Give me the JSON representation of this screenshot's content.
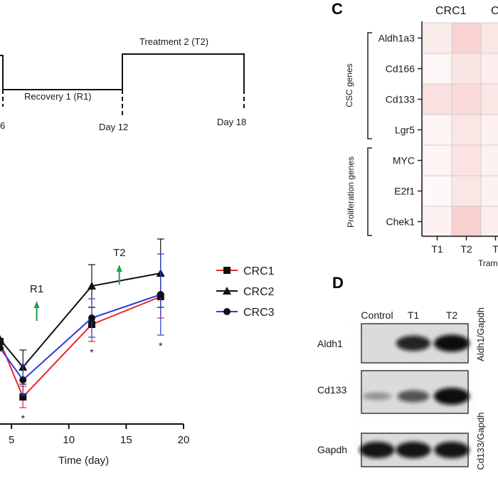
{
  "schematic": {
    "treatment2_label": "Treatment  2 (T2)",
    "recovery1_label": "Recovery  1 (R1)",
    "day6_partial": "6",
    "day12_label": "Day 12",
    "day18_label": "Day 18"
  },
  "panelC": {
    "letter": "C",
    "column_header": "CRC1",
    "column_header_partial": "C",
    "group_csc": "CSC genes",
    "group_prolif": "Proliferation genes",
    "rows": [
      "Aldh1a3",
      "Cd166",
      "Cd133",
      "Lgr5",
      "MYC",
      "E2f1",
      "Chek1"
    ],
    "cols": [
      "T1",
      "T2",
      "T"
    ],
    "xlabel_partial": "Trametin",
    "heat_colors": [
      [
        "#fbecec",
        "#f9d2d2",
        "#fbe6e6"
      ],
      [
        "#fdf6f6",
        "#fae4e4",
        "#fceeee"
      ],
      [
        "#fae0e0",
        "#fad9d9",
        "#fbe6e6"
      ],
      [
        "#fdf4f4",
        "#fbe6e6",
        "#fdf1f1"
      ],
      [
        "#fdf4f4",
        "#fbe3e3",
        "#fdf1f1"
      ],
      [
        "#fef8f8",
        "#fbe6e6",
        "#fdf1f1"
      ],
      [
        "#fdf1f1",
        "#f9d0d0",
        "#fceeee"
      ]
    ]
  },
  "panelD": {
    "letter": "D",
    "lanes": [
      "Control",
      "T1",
      "T2"
    ],
    "blots": [
      "Aldh1",
      "Cd133",
      "Gapdh"
    ],
    "side_labels": [
      "Aldh1/Gapdh",
      "Cd133/Gapdh"
    ],
    "band_intensity": [
      [
        0.0,
        0.85,
        1.0
      ],
      [
        0.15,
        0.55,
        1.0
      ],
      [
        0.95,
        0.95,
        0.95
      ]
    ]
  },
  "chart_data": {
    "type": "line",
    "xlabel": "Time (day)",
    "xlim": [
      4,
      20
    ],
    "ylim": [
      0,
      1
    ],
    "xticks": [
      5,
      10,
      15,
      20
    ],
    "xtick_labels": [
      "5",
      "10",
      "15",
      "20"
    ],
    "x": [
      4,
      6,
      12,
      18
    ],
    "series": [
      {
        "name": "CRC1",
        "marker": "square",
        "color": "#e8262b",
        "values": [
          0.4,
          0.14,
          0.48,
          0.61
        ],
        "err": [
          0.0,
          0.05,
          0.08,
          0.1
        ]
      },
      {
        "name": "CRC2",
        "marker": "triangle",
        "color": "#111111",
        "values": [
          0.41,
          0.28,
          0.66,
          0.72
        ],
        "err": [
          0.0,
          0.08,
          0.1,
          0.16
        ]
      },
      {
        "name": "CRC3",
        "marker": "circle",
        "color": "#2c3ed6",
        "values": [
          0.37,
          0.22,
          0.51,
          0.62
        ],
        "err": [
          0.0,
          0.07,
          0.09,
          0.19
        ]
      }
    ],
    "star_label": "*",
    "star_days": [
      6,
      12,
      18
    ],
    "annotations": [
      {
        "text": "R1",
        "x": 7.2
      },
      {
        "text": "T2",
        "x": 14.4
      }
    ],
    "arrow_color": "#1aa251",
    "legend": "right"
  }
}
